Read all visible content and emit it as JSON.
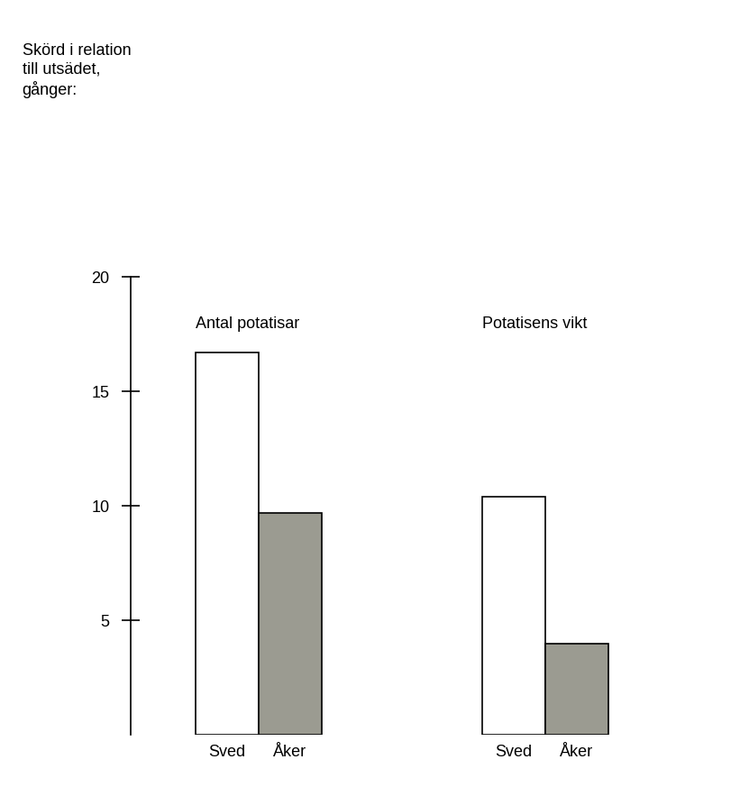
{
  "chart_data": {
    "type": "bar",
    "y_label": "Skörd i relation\ntill utsädet,\ngånger:",
    "categories": [
      "Antal potatisar",
      "Potatisens vikt"
    ],
    "series": [
      {
        "name": "Sved",
        "color": "#ffffff",
        "values": [
          16.7,
          10.4
        ]
      },
      {
        "name": "Åker",
        "color": "#9b9b91",
        "values": [
          9.7,
          4.0
        ]
      }
    ],
    "ylim": [
      0,
      20
    ],
    "yticks": [
      5,
      10,
      15,
      20
    ],
    "grid": false
  }
}
